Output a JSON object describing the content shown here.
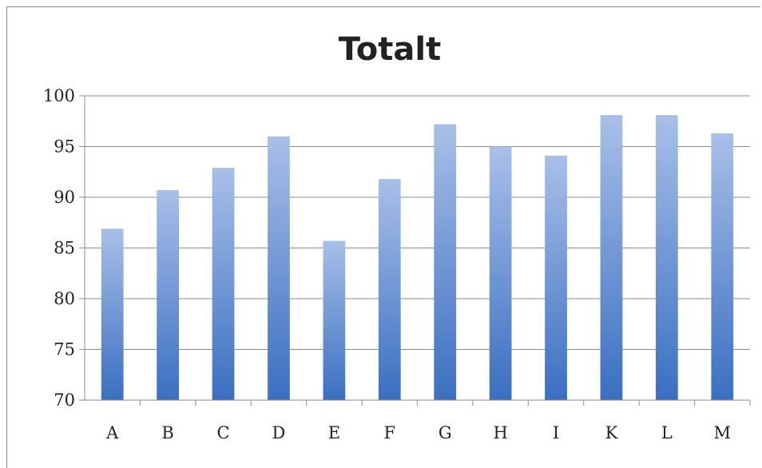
{
  "chart_data": {
    "type": "bar",
    "title": "Totalt",
    "xlabel": "",
    "ylabel": "",
    "categories": [
      "A",
      "B",
      "C",
      "D",
      "E",
      "F",
      "G",
      "H",
      "I",
      "K",
      "L",
      "M"
    ],
    "values": [
      86.9,
      90.7,
      92.9,
      96.0,
      85.7,
      91.8,
      97.2,
      95.0,
      94.1,
      98.1,
      98.1,
      96.3
    ],
    "ylim": [
      70,
      100
    ],
    "yticks": [
      70,
      75,
      80,
      85,
      90,
      95,
      100
    ],
    "grid": true,
    "legend": "none",
    "colors": {
      "bar_top": "#a9bfe8",
      "bar_bottom": "#3a6fc1",
      "grid": "#8c8c8c",
      "text": "#222222"
    }
  }
}
